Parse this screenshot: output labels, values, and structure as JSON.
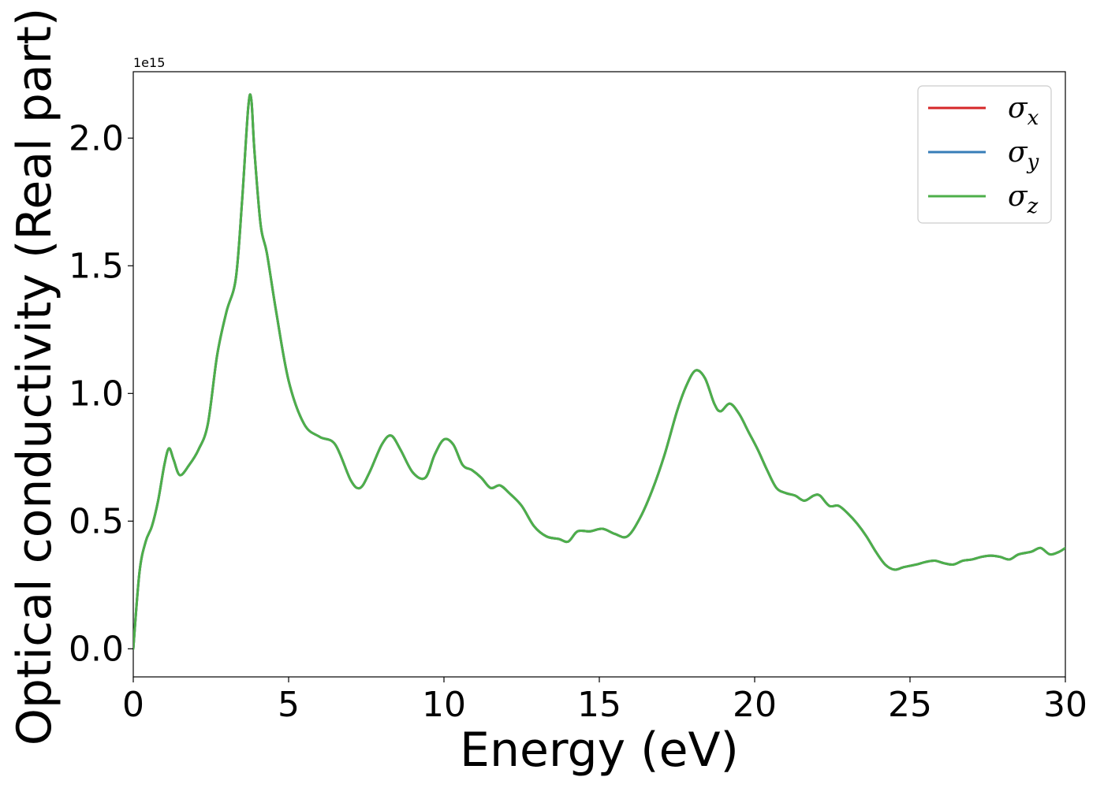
{
  "chart_data": {
    "type": "line",
    "title": "",
    "xlabel": "Energy (eV)",
    "ylabel": "Optical conductivity (Real part)",
    "y_offset_label": "1e15",
    "xlim": [
      0,
      30
    ],
    "ylim": [
      -0.11,
      2.26
    ],
    "x_ticks": [
      0,
      5,
      10,
      15,
      20,
      25,
      30
    ],
    "x_tick_labels": [
      "0",
      "5",
      "10",
      "15",
      "20",
      "25",
      "30"
    ],
    "y_ticks": [
      0.0,
      0.5,
      1.0,
      1.5,
      2.0
    ],
    "y_tick_labels": [
      "0.0",
      "0.5",
      "1.0",
      "1.5",
      "2.0"
    ],
    "grid": false,
    "legend_position": "top-right",
    "legend": [
      {
        "symbol": "σ",
        "sub": "x",
        "color": "#d62728"
      },
      {
        "symbol": "σ",
        "sub": "y",
        "color": "#377eb8"
      },
      {
        "symbol": "σ",
        "sub": "z",
        "color": "#4daf4a"
      }
    ],
    "x": [
      0,
      0.2,
      0.4,
      0.6,
      0.8,
      1.0,
      1.15,
      1.3,
      1.5,
      1.8,
      2.1,
      2.4,
      2.7,
      3.0,
      3.3,
      3.5,
      3.7,
      3.8,
      3.9,
      4.1,
      4.3,
      4.6,
      5.0,
      5.5,
      6.0,
      6.5,
      7.0,
      7.3,
      7.6,
      8.0,
      8.3,
      8.6,
      9.0,
      9.4,
      9.7,
      10.0,
      10.3,
      10.6,
      10.9,
      11.2,
      11.5,
      11.8,
      12.1,
      12.5,
      12.9,
      13.3,
      13.7,
      14.0,
      14.3,
      14.7,
      15.1,
      15.5,
      15.9,
      16.3,
      16.7,
      17.1,
      17.5,
      17.8,
      18.1,
      18.4,
      18.7,
      18.9,
      19.2,
      19.5,
      19.8,
      20.1,
      20.4,
      20.7,
      21.0,
      21.3,
      21.6,
      21.9,
      22.1,
      22.4,
      22.7,
      23.0,
      23.3,
      23.6,
      23.9,
      24.2,
      24.5,
      24.8,
      25.2,
      25.5,
      25.8,
      26.1,
      26.4,
      26.7,
      27.0,
      27.3,
      27.6,
      27.9,
      28.2,
      28.5,
      28.9,
      29.2,
      29.5,
      29.8,
      30.0
    ],
    "series": [
      {
        "name": "σx",
        "color": "#d62728",
        "values": [
          0.0,
          0.3,
          0.42,
          0.48,
          0.58,
          0.72,
          0.785,
          0.74,
          0.68,
          0.72,
          0.78,
          0.88,
          1.15,
          1.32,
          1.45,
          1.75,
          2.12,
          2.15,
          1.95,
          1.66,
          1.55,
          1.32,
          1.05,
          0.88,
          0.83,
          0.8,
          0.66,
          0.63,
          0.69,
          0.8,
          0.835,
          0.78,
          0.69,
          0.67,
          0.76,
          0.82,
          0.8,
          0.72,
          0.7,
          0.67,
          0.63,
          0.64,
          0.61,
          0.56,
          0.48,
          0.44,
          0.43,
          0.42,
          0.46,
          0.46,
          0.47,
          0.45,
          0.44,
          0.51,
          0.62,
          0.76,
          0.93,
          1.03,
          1.09,
          1.06,
          0.96,
          0.93,
          0.96,
          0.92,
          0.85,
          0.78,
          0.7,
          0.63,
          0.61,
          0.6,
          0.58,
          0.6,
          0.6,
          0.56,
          0.56,
          0.53,
          0.49,
          0.44,
          0.38,
          0.33,
          0.31,
          0.32,
          0.33,
          0.34,
          0.345,
          0.335,
          0.33,
          0.345,
          0.35,
          0.36,
          0.365,
          0.36,
          0.35,
          0.37,
          0.38,
          0.395,
          0.37,
          0.38,
          0.395
        ]
      },
      {
        "name": "σy",
        "color": "#377eb8",
        "values": [
          0.0,
          0.3,
          0.42,
          0.48,
          0.58,
          0.72,
          0.785,
          0.74,
          0.68,
          0.72,
          0.78,
          0.88,
          1.15,
          1.32,
          1.45,
          1.75,
          2.12,
          2.15,
          1.95,
          1.66,
          1.55,
          1.32,
          1.05,
          0.88,
          0.83,
          0.8,
          0.66,
          0.63,
          0.69,
          0.8,
          0.835,
          0.78,
          0.69,
          0.67,
          0.76,
          0.82,
          0.8,
          0.72,
          0.7,
          0.67,
          0.63,
          0.64,
          0.61,
          0.56,
          0.48,
          0.44,
          0.43,
          0.42,
          0.46,
          0.46,
          0.47,
          0.45,
          0.44,
          0.51,
          0.62,
          0.76,
          0.93,
          1.03,
          1.09,
          1.06,
          0.96,
          0.93,
          0.96,
          0.92,
          0.85,
          0.78,
          0.7,
          0.63,
          0.61,
          0.6,
          0.58,
          0.6,
          0.6,
          0.56,
          0.56,
          0.53,
          0.49,
          0.44,
          0.38,
          0.33,
          0.31,
          0.32,
          0.33,
          0.34,
          0.345,
          0.335,
          0.33,
          0.345,
          0.35,
          0.36,
          0.365,
          0.36,
          0.35,
          0.37,
          0.38,
          0.395,
          0.37,
          0.38,
          0.395
        ]
      },
      {
        "name": "σz",
        "color": "#4daf4a",
        "values": [
          0.0,
          0.3,
          0.42,
          0.48,
          0.58,
          0.72,
          0.785,
          0.74,
          0.68,
          0.72,
          0.78,
          0.88,
          1.15,
          1.32,
          1.45,
          1.75,
          2.12,
          2.15,
          1.95,
          1.66,
          1.55,
          1.32,
          1.05,
          0.88,
          0.83,
          0.8,
          0.66,
          0.63,
          0.69,
          0.8,
          0.835,
          0.78,
          0.69,
          0.67,
          0.76,
          0.82,
          0.8,
          0.72,
          0.7,
          0.67,
          0.63,
          0.64,
          0.61,
          0.56,
          0.48,
          0.44,
          0.43,
          0.42,
          0.46,
          0.46,
          0.47,
          0.45,
          0.44,
          0.51,
          0.62,
          0.76,
          0.93,
          1.03,
          1.09,
          1.06,
          0.96,
          0.93,
          0.96,
          0.92,
          0.85,
          0.78,
          0.7,
          0.63,
          0.61,
          0.6,
          0.58,
          0.6,
          0.6,
          0.56,
          0.56,
          0.53,
          0.49,
          0.44,
          0.38,
          0.33,
          0.31,
          0.32,
          0.33,
          0.34,
          0.345,
          0.335,
          0.33,
          0.345,
          0.35,
          0.36,
          0.365,
          0.36,
          0.35,
          0.37,
          0.38,
          0.395,
          0.37,
          0.38,
          0.395
        ]
      }
    ]
  }
}
